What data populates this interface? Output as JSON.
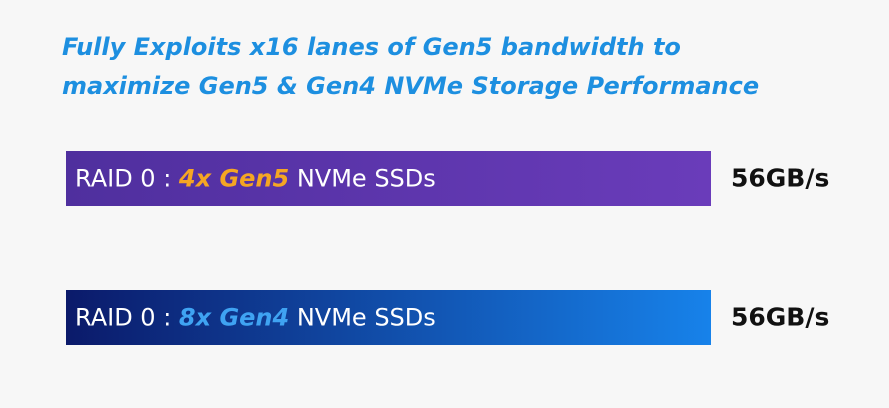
{
  "chart_data": {
    "type": "bar",
    "orientation": "horizontal",
    "title": [
      "Fully Exploits x16 lanes of Gen5 bandwidth to",
      "maximize Gen5 & Gen4 NVMe Storage Performance"
    ],
    "categories": [
      "RAID 0 : 4x Gen5 NVMe SSDs",
      "RAID 0 : 8x Gen4 NVMe SSDs"
    ],
    "values": [
      56,
      56
    ],
    "value_labels": [
      "56GB/s",
      "56GB/s"
    ],
    "colors": [
      [
        "#4f2f9e",
        "#6a3cba"
      ],
      [
        "#0b1a6a",
        "#1782ea"
      ]
    ],
    "highlight_colors": [
      "#f5a623",
      "#3fa3f2"
    ]
  }
}
